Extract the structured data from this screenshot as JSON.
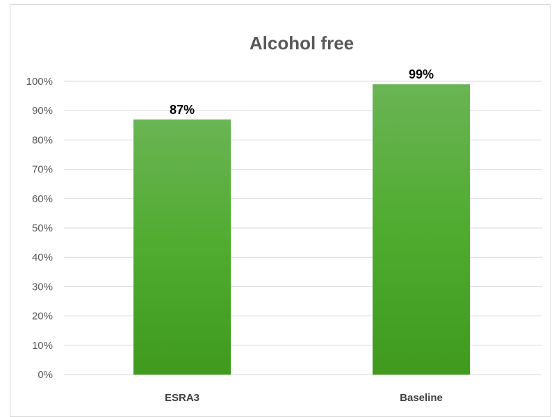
{
  "chart_data": {
    "type": "bar",
    "title": "Alcohol free",
    "xlabel": "",
    "ylabel": "",
    "categories": [
      "ESRA3",
      "Baseline"
    ],
    "values": [
      0.87,
      0.99
    ],
    "data_labels": [
      "87%",
      "99%"
    ],
    "ylim": [
      0,
      1
    ],
    "yticks": [
      0,
      0.1,
      0.2,
      0.3,
      0.4,
      0.5,
      0.6,
      0.7,
      0.8,
      0.9,
      1.0
    ],
    "ytick_labels": [
      "0%",
      "10%",
      "20%",
      "30%",
      "40%",
      "50%",
      "60%",
      "70%",
      "80%",
      "90%",
      "100%"
    ],
    "grid": true,
    "legend": "none",
    "colors": {
      "bar_top": "#6ab454",
      "bar_mid": "#4fac2f",
      "bar_bottom": "#3f9a1e",
      "gridline": "#d9d9d9"
    }
  }
}
